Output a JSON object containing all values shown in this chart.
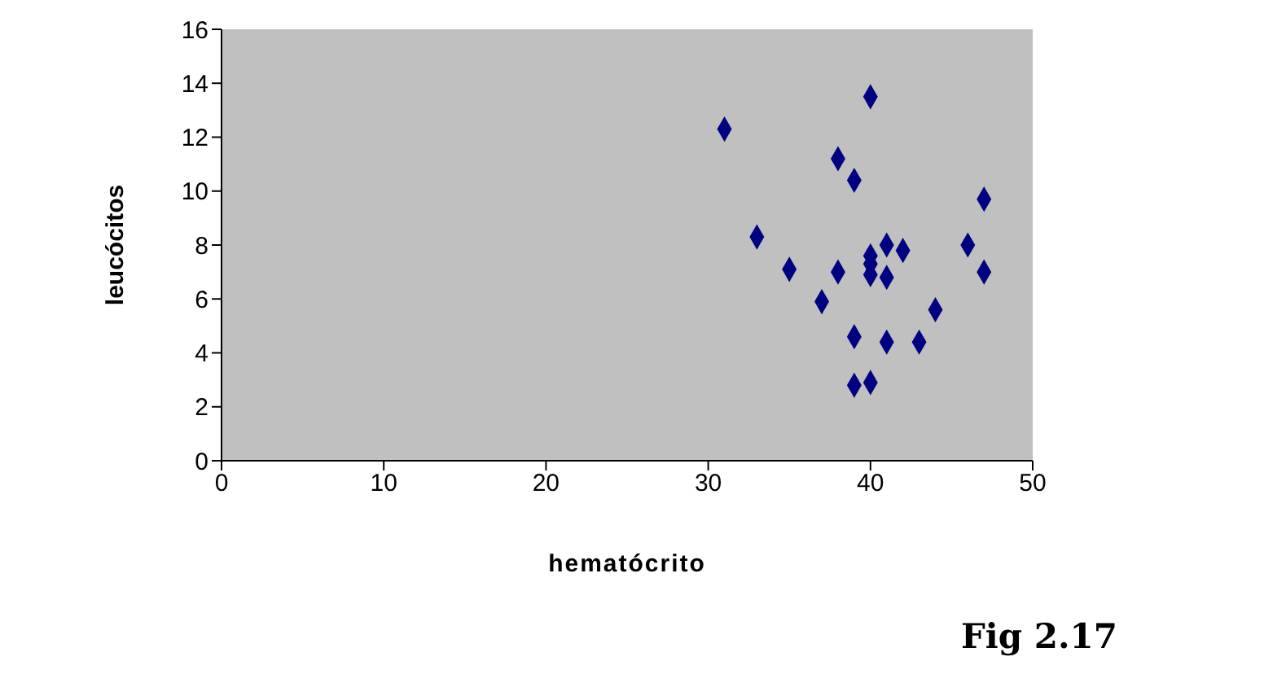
{
  "chart_data": {
    "type": "scatter",
    "xlabel": "hematócrito",
    "ylabel": "leucócitos",
    "annotations": [
      "Fig 2.17"
    ],
    "x": [
      31,
      40,
      38,
      39,
      47,
      33,
      41,
      42,
      46,
      40,
      40,
      35,
      38,
      40,
      41,
      47,
      37,
      44,
      39,
      41,
      43,
      39,
      40
    ],
    "values": [
      12.3,
      13.5,
      11.2,
      10.4,
      9.7,
      8.3,
      8.0,
      7.8,
      8.0,
      7.6,
      7.3,
      7.1,
      7.0,
      6.9,
      6.8,
      7.0,
      5.9,
      5.6,
      4.6,
      4.4,
      4.4,
      2.8,
      2.9
    ],
    "color": "#000080",
    "marker": "diamond",
    "xlim": [
      0,
      50
    ],
    "xticks": [
      0,
      10,
      20,
      30,
      40,
      50
    ],
    "ylim": [
      0,
      16
    ],
    "yticks": [
      0,
      2,
      4,
      6,
      8,
      10,
      12,
      14,
      16
    ],
    "grid": false,
    "legend": false
  }
}
